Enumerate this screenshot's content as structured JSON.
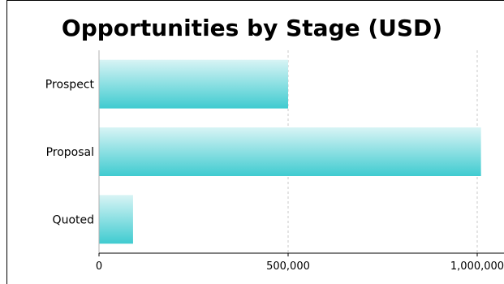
{
  "chart_data": {
    "type": "bar",
    "orientation": "horizontal",
    "title": "Opportunities by Stage (USD)",
    "categories": [
      "Prospect",
      "Proposal",
      "Quoted"
    ],
    "values": [
      500000,
      1010000,
      90000
    ],
    "xlim": [
      0,
      1000000
    ],
    "x_ticks": [
      0,
      500000,
      1000000
    ],
    "x_tick_labels": [
      "0",
      "500,000",
      "1,000,000"
    ],
    "xlabel": "",
    "ylabel": "",
    "grid": true,
    "bar_color_top": "#d8f4f5",
    "bar_color_bottom": "#3fcbd0"
  }
}
